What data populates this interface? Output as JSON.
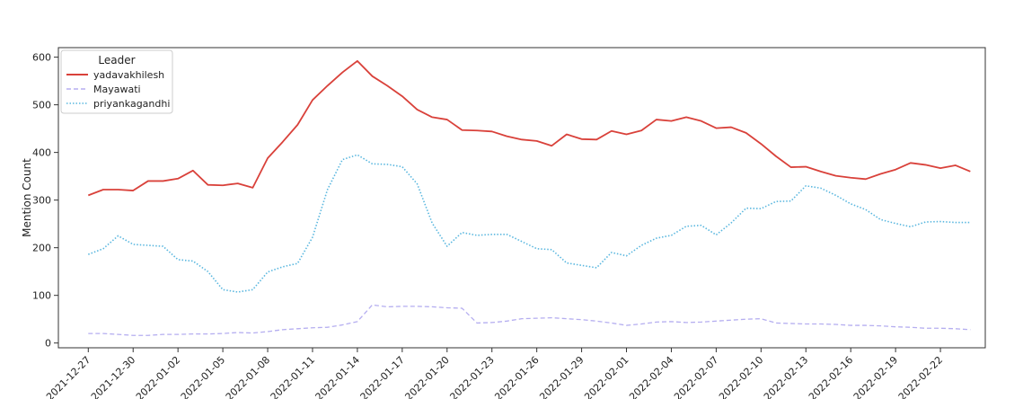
{
  "chart_data": {
    "type": "line",
    "title": "",
    "xlabel": "",
    "ylabel": "Mention Count",
    "ylim": [
      -10,
      620
    ],
    "yticks": [
      0,
      100,
      200,
      300,
      400,
      500,
      600
    ],
    "xticks": [
      "2021-12-27",
      "2021-12-30",
      "2022-01-02",
      "2022-01-05",
      "2022-01-08",
      "2022-01-11",
      "2022-01-14",
      "2022-01-17",
      "2022-01-20",
      "2022-01-23",
      "2022-01-26",
      "2022-01-29",
      "2022-02-01",
      "2022-02-04",
      "2022-02-07",
      "2022-02-10",
      "2022-02-13",
      "2022-02-16",
      "2022-02-19",
      "2022-02-22"
    ],
    "x_start": "2021-12-27",
    "x_end": "2022-02-23",
    "grid": false,
    "legend": {
      "title": "Leader",
      "placement": "top-left"
    },
    "series": [
      {
        "name": "yadavakhilesh",
        "color": "#d9413a",
        "style": "solid",
        "values": [
          310,
          322,
          322,
          320,
          340,
          340,
          345,
          362,
          332,
          331,
          335,
          326,
          388,
          422,
          458,
          510,
          540,
          568,
          592,
          560,
          540,
          518,
          490,
          474,
          469,
          447,
          446,
          444,
          434,
          427,
          424,
          414,
          438,
          428,
          427,
          445,
          438,
          446,
          469,
          466,
          474,
          466,
          451,
          453,
          441,
          418,
          392,
          369,
          370,
          360,
          351,
          347,
          344,
          355,
          364,
          378,
          374,
          367,
          373,
          360
        ]
      },
      {
        "name": "Mayawati",
        "color": "#b5aef0",
        "style": "dashed",
        "values": [
          20,
          20,
          18,
          16,
          16,
          18,
          18,
          19,
          19,
          20,
          22,
          21,
          24,
          28,
          30,
          32,
          33,
          38,
          45,
          80,
          76,
          77,
          77,
          76,
          74,
          73,
          42,
          43,
          46,
          51,
          52,
          53,
          51,
          49,
          46,
          42,
          37,
          40,
          44,
          45,
          43,
          44,
          46,
          48,
          50,
          51,
          42,
          41,
          40,
          40,
          39,
          37,
          37,
          36,
          34,
          33,
          31,
          31,
          30,
          28
        ]
      },
      {
        "name": "priyankagandhi",
        "color": "#5ab7df",
        "style": "dotted",
        "values": [
          186,
          198,
          225,
          207,
          205,
          203,
          175,
          172,
          150,
          112,
          107,
          112,
          149,
          160,
          167,
          222,
          322,
          385,
          395,
          376,
          375,
          370,
          334,
          252,
          203,
          232,
          226,
          228,
          228,
          213,
          198,
          196,
          168,
          163,
          158,
          190,
          183,
          205,
          220,
          226,
          245,
          247,
          227,
          252,
          283,
          282,
          297,
          298,
          330,
          325,
          310,
          292,
          280,
          259,
          251,
          244,
          254,
          255,
          253,
          253
        ]
      }
    ]
  }
}
